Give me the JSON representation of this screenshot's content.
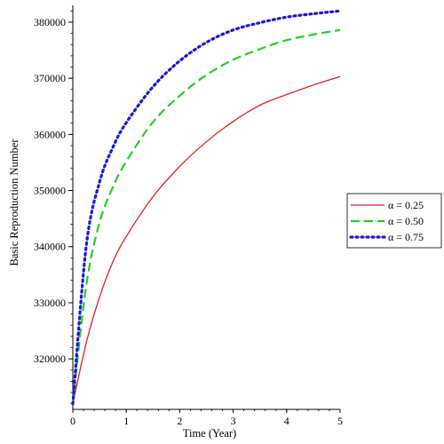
{
  "chart_data": {
    "type": "line",
    "xlabel": "Time (Year)",
    "ylabel": "Basic Reproduction Number",
    "xlim": [
      0,
      5
    ],
    "ylim": [
      311000,
      383000
    ],
    "x_ticks": [
      "0",
      "1",
      "2",
      "3",
      "4",
      "5"
    ],
    "y_ticks": [
      "320000",
      "330000",
      "340000",
      "350000",
      "360000",
      "370000",
      "380000"
    ],
    "grid": false,
    "legend_position": "right",
    "x": [
      0,
      0.25,
      0.5,
      0.75,
      1,
      1.5,
      2,
      2.5,
      3,
      3.5,
      4,
      4.5,
      5
    ],
    "series": [
      {
        "name": "α = 0.25",
        "color": "#e02020",
        "line_style": "solid",
        "values": [
          312000,
          322800,
          331000,
          337300,
          341800,
          348900,
          354300,
          358700,
          362300,
          365200,
          367100,
          368800,
          370300
        ]
      },
      {
        "name": "α = 0.50",
        "color": "#20d020",
        "line_style": "dashed",
        "values": [
          312000,
          333000,
          344300,
          350600,
          355200,
          362200,
          366900,
          370600,
          373300,
          375200,
          376800,
          377800,
          378600
        ]
      },
      {
        "name": "α = 0.75",
        "color": "#1a1ad0",
        "line_style": "dotted",
        "values": [
          312000,
          340000,
          351500,
          357700,
          362100,
          368500,
          373100,
          376400,
          378600,
          379900,
          380900,
          381500,
          382000
        ]
      }
    ]
  }
}
